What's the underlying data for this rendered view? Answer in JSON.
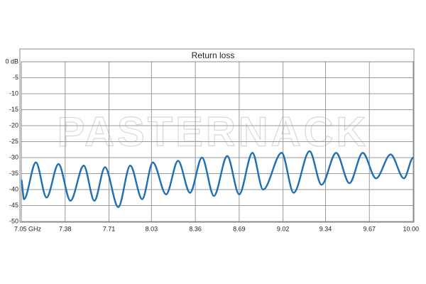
{
  "chart_data": {
    "type": "line",
    "title": "Return loss",
    "watermark": "PASTERNACK",
    "x": [
      7.05,
      7.07,
      7.16,
      7.24,
      7.33,
      7.42,
      7.52,
      7.6,
      7.68,
      7.78,
      7.87,
      7.96,
      8.04,
      8.14,
      8.23,
      8.32,
      8.41,
      8.5,
      8.6,
      8.69,
      8.79,
      8.87,
      9.01,
      9.1,
      9.22,
      9.31,
      9.42,
      9.52,
      9.62,
      9.72,
      9.83,
      9.93,
      10.0
    ],
    "series": [
      {
        "name": "Return loss",
        "color": "#1f6fb5",
        "values": [
          -37,
          -43,
          -31.5,
          -42.5,
          -32,
          -43.5,
          -32.5,
          -43.5,
          -33,
          -45.5,
          -32.5,
          -43,
          -31.5,
          -41.5,
          -31,
          -41,
          -30,
          -42,
          -29.5,
          -41.5,
          -28.5,
          -40,
          -28.5,
          -41,
          -28,
          -38.5,
          -28.5,
          -38,
          -28.5,
          -36.5,
          -29,
          -36.5,
          -30
        ]
      }
    ],
    "xlim": [
      7.05,
      10.0
    ],
    "xticks": [
      {
        "value": 7.05,
        "label": "7.05   GHz"
      },
      7.38,
      7.71,
      8.03,
      8.36,
      8.69,
      9.02,
      9.34,
      9.67,
      {
        "value": 10.0,
        "label": "10.00"
      }
    ],
    "ylim": [
      -50,
      0
    ],
    "yticks": [
      {
        "value": 0,
        "label": "0 dB"
      },
      -5,
      -10,
      -15,
      -20,
      -25,
      -30,
      -35,
      -40,
      -45,
      -50
    ],
    "grid": true
  }
}
